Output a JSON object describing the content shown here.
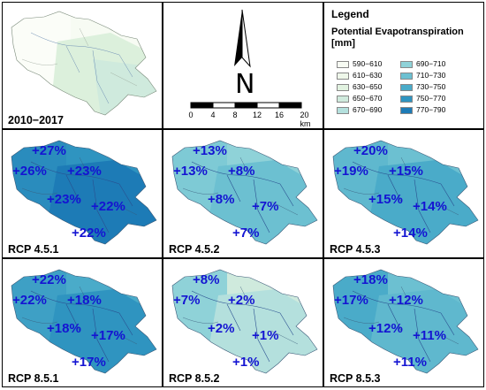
{
  "legend": {
    "title": "Legend",
    "subtitle": "Potential Evapotranspiration [mm]",
    "items": [
      {
        "label": "590−610",
        "color": "#f7fbf3"
      },
      {
        "label": "610−630",
        "color": "#eef7ea"
      },
      {
        "label": "630−650",
        "color": "#e1f2e0"
      },
      {
        "label": "650−670",
        "color": "#cfeadd"
      },
      {
        "label": "670−690",
        "color": "#b4e0dd"
      },
      {
        "label": "690−710",
        "color": "#8fd2d8"
      },
      {
        "label": "710−730",
        "color": "#6cc0d1"
      },
      {
        "label": "730−750",
        "color": "#4aabc9"
      },
      {
        "label": "750−770",
        "color": "#2f94c0"
      },
      {
        "label": "770−790",
        "color": "#1d7bb6"
      }
    ]
  },
  "compass": {
    "north_label": "N"
  },
  "scale": {
    "ticks": [
      "0",
      "4",
      "8",
      "12",
      "16",
      "20 km"
    ]
  },
  "baseline": {
    "label": "2010−2017"
  },
  "scenarios": [
    {
      "label": "RCP 4.5.1",
      "values": [
        "+27%",
        "+26%",
        "+23%",
        "+23%",
        "+22%",
        "+22%"
      ]
    },
    {
      "label": "RCP 4.5.2",
      "values": [
        "+13%",
        "+13%",
        "+8%",
        "+8%",
        "+7%",
        "+7%"
      ]
    },
    {
      "label": "RCP 4.5.3",
      "values": [
        "+20%",
        "+19%",
        "+15%",
        "+15%",
        "+14%",
        "+14%"
      ]
    },
    {
      "label": "RCP 8.5.1",
      "values": [
        "+22%",
        "+22%",
        "+18%",
        "+18%",
        "+17%",
        "+17%"
      ]
    },
    {
      "label": "RCP 8.5.2",
      "values": [
        "+8%",
        "+7%",
        "+2%",
        "+2%",
        "+1%",
        "+1%"
      ]
    },
    {
      "label": "RCP 8.5.3",
      "values": [
        "+18%",
        "+17%",
        "+12%",
        "+12%",
        "+11%",
        "+11%"
      ]
    }
  ]
}
